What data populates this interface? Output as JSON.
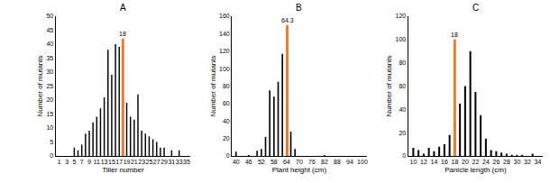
{
  "chart_data": [
    {
      "type": "bar",
      "title": "A",
      "x_label": "Tiller number",
      "y_label": "Number of mutants",
      "color": "#000000",
      "grid": false,
      "x": [
        1,
        2,
        3,
        4,
        5,
        6,
        7,
        8,
        9,
        10,
        11,
        12,
        13,
        14,
        15,
        16,
        17,
        18,
        19,
        20,
        21,
        22,
        23,
        24,
        25,
        26,
        27,
        28,
        29,
        30,
        31,
        32,
        33,
        34,
        35
      ],
      "values": [
        0,
        0,
        0,
        0,
        3,
        2,
        4,
        8,
        9,
        12,
        14,
        17,
        21,
        38,
        29,
        40,
        39,
        32,
        19,
        14,
        13,
        22,
        9,
        8,
        7,
        6,
        5,
        3,
        3,
        0,
        2,
        0,
        2,
        0,
        0
      ],
      "xlim": [
        0,
        36
      ],
      "xticks": [
        1,
        3,
        5,
        7,
        9,
        11,
        13,
        15,
        17,
        19,
        21,
        23,
        25,
        27,
        29,
        31,
        33,
        35
      ],
      "ylim": [
        0,
        50
      ],
      "yticks": [
        0,
        5,
        10,
        15,
        20,
        25,
        30,
        35,
        40,
        45,
        50
      ],
      "annotations": [
        {
          "x": 18,
          "y": 42,
          "text": "18",
          "color": "#ed7d31"
        }
      ]
    },
    {
      "type": "bar",
      "title": "B",
      "x_label": "Plant height (cm)",
      "y_label": "Number of mutants",
      "color": "#000000",
      "grid": false,
      "x": [
        40,
        42,
        44,
        46,
        48,
        50,
        52,
        54,
        56,
        58,
        60,
        62,
        64,
        66,
        68,
        70,
        72,
        74,
        76,
        78,
        80,
        82,
        84,
        86,
        88,
        90,
        92,
        94,
        96,
        98,
        100
      ],
      "values": [
        5,
        0,
        0,
        1,
        0,
        6,
        8,
        22,
        75,
        68,
        85,
        117,
        60,
        28,
        8,
        0,
        0,
        0,
        0,
        0,
        0,
        1,
        0,
        0,
        0,
        0,
        0,
        0,
        0,
        0,
        0
      ],
      "xlim": [
        38,
        102
      ],
      "xticks": [
        40,
        46,
        52,
        58,
        64,
        70,
        76,
        82,
        88,
        94,
        100
      ],
      "ylim": [
        0,
        160
      ],
      "yticks": [
        0,
        20,
        40,
        60,
        80,
        100,
        120,
        140,
        160
      ],
      "annotations": [
        {
          "x": 64.3,
          "y": 150,
          "text": "64.3",
          "color": "#ed7d31"
        }
      ]
    },
    {
      "type": "bar",
      "title": "C",
      "x_label": "Panicle length (cm)",
      "y_label": "Number of mutants",
      "color": "#000000",
      "grid": false,
      "x": [
        10,
        11,
        12,
        13,
        14,
        15,
        16,
        17,
        18,
        19,
        20,
        21,
        22,
        23,
        24,
        25,
        26,
        27,
        28,
        29,
        30,
        31,
        32,
        33,
        34
      ],
      "values": [
        7,
        5,
        2,
        7,
        4,
        8,
        10,
        18,
        28,
        45,
        60,
        90,
        55,
        35,
        15,
        5,
        4,
        3,
        2,
        1,
        1,
        1,
        0,
        2,
        0
      ],
      "xlim": [
        9,
        35
      ],
      "xticks": [
        10,
        12,
        14,
        16,
        18,
        20,
        22,
        24,
        26,
        28,
        30,
        32,
        34
      ],
      "ylim": [
        0,
        120
      ],
      "yticks": [
        0,
        20,
        40,
        60,
        80,
        100,
        120
      ],
      "annotations": [
        {
          "x": 18,
          "y": 100,
          "text": "18",
          "color": "#ed7d31"
        }
      ]
    }
  ]
}
